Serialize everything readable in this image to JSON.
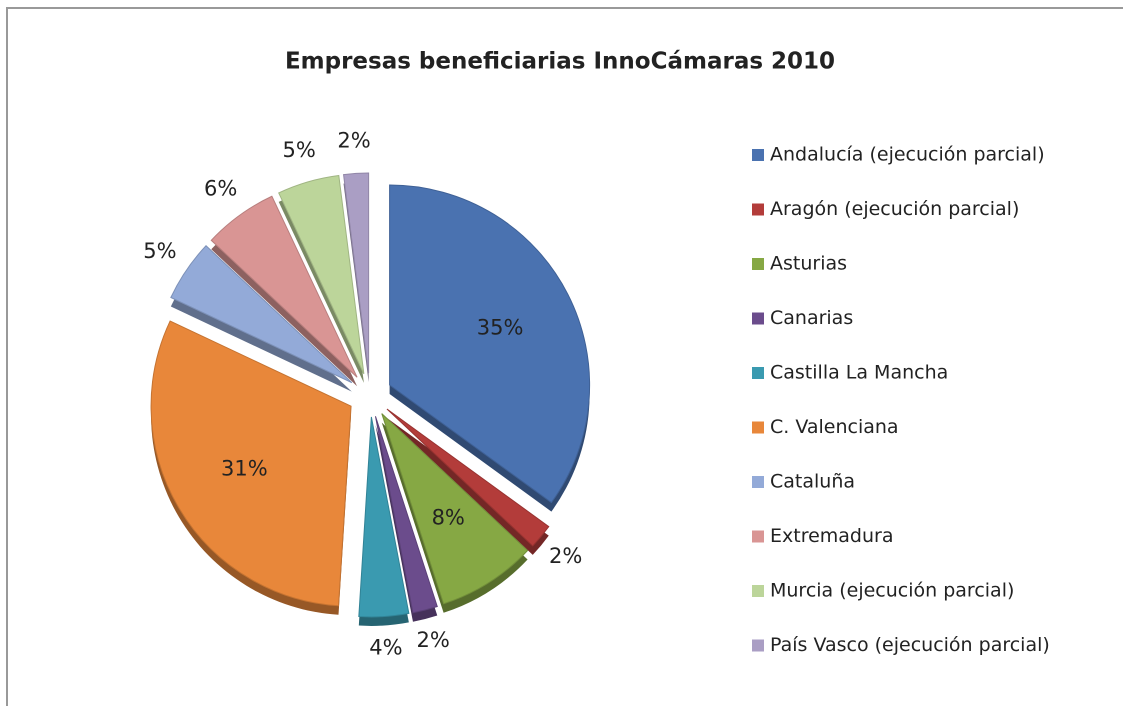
{
  "chart_data": {
    "type": "pie",
    "title": "Empresas beneficiarias InnoCámaras 2010",
    "categories": [
      "Andalucía (ejecución parcial)",
      "Aragón (ejecución parcial)",
      "Asturias",
      "Canarias",
      "Castilla La Mancha",
      "C. Valenciana",
      "Cataluña",
      "Extremadura",
      "Murcia (ejecución parcial)",
      "País Vasco (ejecución parcial)"
    ],
    "values": [
      35,
      2,
      8,
      2,
      4,
      31,
      5,
      6,
      5,
      2
    ],
    "value_labels": [
      "35%",
      "2%",
      "8%",
      "2%",
      "4%",
      "31%",
      "5%",
      "6%",
      "5%",
      "2%"
    ],
    "colors": [
      "#4a72b0",
      "#b33c3a",
      "#86a844",
      "#6b4c8c",
      "#3a9ab0",
      "#e8873a",
      "#93aad8",
      "#d99594",
      "#bcd59a",
      "#aa9ec4"
    ],
    "legend": "right"
  }
}
